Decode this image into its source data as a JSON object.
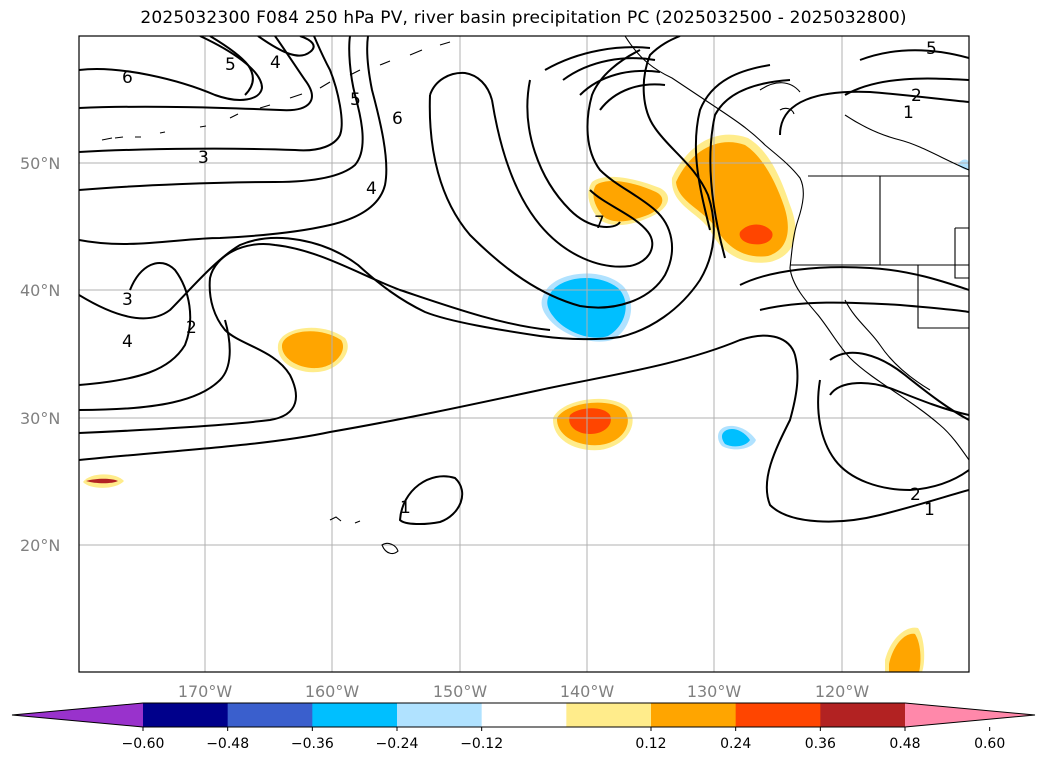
{
  "title": "2025032300 F084 250 hPa PV, river basin precipitation PC (2025032500 - 2025032800)",
  "map": {
    "lat_labels": [
      "50°N",
      "40°N",
      "30°N",
      "20°N"
    ],
    "lon_labels": [
      "170°W",
      "160°W",
      "150°W",
      "140°W",
      "130°W",
      "120°W"
    ],
    "contour_labels": [
      "6",
      "5",
      "4",
      "5",
      "6",
      "3",
      "4",
      "3",
      "4",
      "2",
      "7",
      "1",
      "2",
      "5",
      "2",
      "1",
      "1"
    ]
  },
  "colorbar": {
    "ticks": [
      "−0.60",
      "−0.48",
      "−0.36",
      "−0.24",
      "−0.12",
      "0.12",
      "0.24",
      "0.36",
      "0.48",
      "0.60"
    ],
    "colors": [
      "#9932cc",
      "#00008b",
      "#3a5fcd",
      "#00bfff",
      "#b0e2ff",
      "#ffffff",
      "#ffec8b",
      "#ffa500",
      "#ff4500",
      "#b22222",
      "#ff88aa"
    ]
  }
}
